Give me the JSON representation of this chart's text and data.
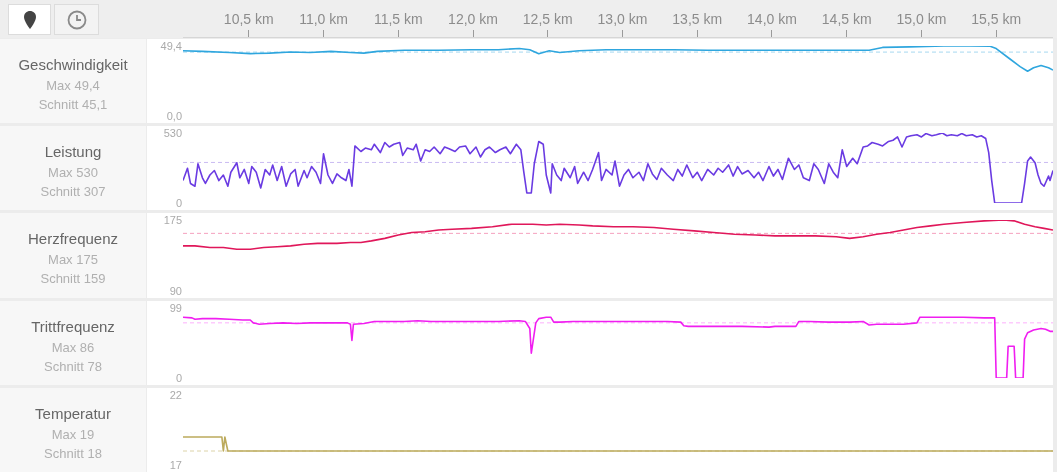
{
  "chart_data": [
    {
      "type": "line",
      "ylabel": "Geschwindigkeit",
      "annotations": [
        "Max 49,4",
        "Schnitt 45,1"
      ],
      "x": [
        10.06,
        10.19,
        10.37,
        10.51,
        10.64,
        10.78,
        10.91,
        11.05,
        11.18,
        11.27,
        11.36,
        11.54,
        11.77,
        11.99,
        12.17,
        12.31,
        12.38,
        12.44,
        12.51,
        12.58,
        12.71,
        12.89,
        13.12,
        13.34,
        13.57,
        13.8,
        14.02,
        14.25,
        14.47,
        14.65,
        14.74,
        14.92,
        15.15,
        15.33,
        15.46,
        15.5,
        15.59,
        15.66,
        15.71,
        15.75,
        15.8,
        15.85,
        15.88
      ],
      "series": [
        {
          "color": "#2fa6de",
          "values": [
            46.0,
            45.6,
            44.8,
            44.0,
            44.4,
            45.2,
            44.8,
            45.6,
            44.8,
            44.4,
            45.6,
            46.4,
            46.4,
            46.8,
            46.8,
            47.6,
            46.8,
            44.0,
            46.0,
            44.8,
            46.0,
            46.8,
            46.8,
            46.8,
            46.4,
            46.4,
            46.4,
            46.4,
            46.4,
            46.4,
            48.4,
            48.8,
            49.4,
            49.4,
            49.2,
            47.6,
            40.4,
            34.8,
            31.6,
            34.0,
            35.6,
            34.0,
            32.4
          ]
        }
      ],
      "xlim": [
        10.06,
        15.88
      ],
      "xticks": [
        {
          "value": 10.5,
          "label": "10,5 km"
        },
        {
          "value": 11,
          "label": "11,0 km"
        },
        {
          "value": 11.5,
          "label": "11,5 km"
        },
        {
          "value": 12,
          "label": "12,0 km"
        },
        {
          "value": 12.5,
          "label": "12,5 km"
        },
        {
          "value": 13,
          "label": "13,0 km"
        },
        {
          "value": 13.5,
          "label": "13,5 km"
        },
        {
          "value": 14,
          "label": "14,0 km"
        },
        {
          "value": 14.5,
          "label": "14,5 km"
        },
        {
          "value": 15,
          "label": "15,0 km"
        },
        {
          "value": 15.5,
          "label": "15,5 km"
        }
      ],
      "ylim": [
        0,
        49.4
      ],
      "yticks": [
        {
          "value": 0,
          "label": "0,0"
        },
        {
          "value": 49.4,
          "label": "49,4"
        }
      ],
      "ref_lines": [
        {
          "axis": "y",
          "value": 45.1,
          "color": "#a6d8f0",
          "line_style": "dashed"
        }
      ]
    },
    {
      "type": "line",
      "ylabel": "Leistung",
      "annotations": [
        "Max 530",
        "Schnitt 307"
      ],
      "x": [
        10.06,
        10.09,
        10.11,
        10.14,
        10.16,
        10.19,
        10.21,
        10.24,
        10.27,
        10.3,
        10.33,
        10.36,
        10.38,
        10.42,
        10.44,
        10.47,
        10.5,
        10.52,
        10.55,
        10.58,
        10.61,
        10.64,
        10.66,
        10.69,
        10.72,
        10.75,
        10.78,
        10.81,
        10.83,
        10.87,
        10.89,
        10.92,
        10.95,
        10.98,
        11.0,
        11.03,
        11.06,
        11.09,
        11.12,
        11.15,
        11.17,
        11.19,
        11.21,
        11.25,
        11.28,
        11.32,
        11.34,
        11.38,
        11.41,
        11.44,
        11.47,
        11.51,
        11.53,
        11.56,
        11.6,
        11.62,
        11.65,
        11.68,
        11.71,
        11.74,
        11.78,
        11.81,
        11.84,
        11.88,
        11.91,
        11.95,
        11.98,
        12.02,
        12.05,
        12.08,
        12.11,
        12.15,
        12.18,
        12.22,
        12.25,
        12.29,
        12.32,
        12.34,
        12.36,
        12.39,
        12.41,
        12.44,
        12.47,
        12.49,
        12.52,
        12.53,
        12.56,
        12.59,
        12.61,
        12.65,
        12.68,
        12.7,
        12.74,
        12.77,
        12.8,
        12.84,
        12.86,
        12.89,
        12.93,
        12.95,
        12.98,
        13.01,
        13.04,
        13.07,
        13.11,
        13.14,
        13.17,
        13.2,
        13.23,
        13.26,
        13.3,
        13.34,
        13.37,
        13.4,
        13.43,
        13.47,
        13.5,
        13.53,
        13.57,
        13.61,
        13.64,
        13.67,
        13.71,
        13.74,
        13.77,
        13.8,
        13.84,
        13.88,
        13.91,
        13.94,
        13.98,
        14.01,
        14.04,
        14.07,
        14.11,
        14.15,
        14.18,
        14.21,
        14.25,
        14.28,
        14.31,
        14.35,
        14.38,
        14.41,
        14.44,
        14.47,
        14.5,
        14.54,
        14.57,
        14.61,
        14.64,
        14.67,
        14.71,
        14.74,
        14.78,
        14.81,
        14.84,
        14.87,
        14.9,
        14.93,
        14.97,
        15.0,
        15.03,
        15.07,
        15.1,
        15.14,
        15.17,
        15.2,
        15.24,
        15.27,
        15.3,
        15.34,
        15.37,
        15.4,
        15.43,
        15.45,
        15.47,
        15.49,
        15.6,
        15.67,
        15.69,
        15.71,
        15.73,
        15.76,
        15.78,
        15.8,
        15.82,
        15.85,
        15.86,
        15.88
      ],
      "series": [
        {
          "color": "#6a3be2",
          "values": [
            170,
            263,
            148,
            127,
            297,
            191,
            148,
            212,
            246,
            170,
            212,
            127,
            233,
            305,
            191,
            254,
            148,
            276,
            233,
            114,
            254,
            212,
            288,
            170,
            276,
            127,
            220,
            254,
            127,
            246,
            191,
            276,
            233,
            148,
            373,
            212,
            148,
            220,
            191,
            170,
            254,
            127,
            432,
            390,
            416,
            403,
            445,
            382,
            458,
            424,
            445,
            458,
            360,
            416,
            403,
            445,
            318,
            403,
            390,
            424,
            373,
            424,
            411,
            390,
            424,
            432,
            373,
            424,
            348,
            403,
            424,
            382,
            403,
            424,
            373,
            445,
            403,
            233,
            76,
            76,
            297,
            466,
            445,
            212,
            76,
            297,
            212,
            170,
            263,
            191,
            276,
            148,
            233,
            170,
            254,
            382,
            170,
            254,
            212,
            318,
            127,
            212,
            254,
            191,
            233,
            170,
            297,
            220,
            178,
            263,
            212,
            170,
            254,
            204,
            288,
            191,
            233,
            170,
            254,
            212,
            263,
            233,
            288,
            204,
            276,
            220,
            246,
            191,
            233,
            170,
            276,
            204,
            254,
            178,
            339,
            254,
            288,
            191,
            170,
            297,
            254,
            148,
            297,
            233,
            191,
            403,
            276,
            339,
            297,
            424,
            432,
            458,
            445,
            432,
            466,
            475,
            500,
            424,
            500,
            509,
            517,
            500,
            526,
            509,
            517,
            530,
            509,
            517,
            509,
            526,
            509,
            517,
            500,
            509,
            488,
            382,
            170,
            0,
            0,
            0,
            148,
            318,
            348,
            305,
            212,
            148,
            127,
            204,
            170,
            246
          ]
        }
      ],
      "xlim": [
        10.06,
        15.88
      ],
      "ylim": [
        0,
        530
      ],
      "yticks": [
        0,
        530
      ],
      "tick_labels": "y",
      "ref_lines": [
        {
          "axis": "y",
          "value": 307,
          "color": "#c9baf2",
          "line_style": "dashed"
        }
      ]
    },
    {
      "type": "line",
      "ylabel": "Herzfrequenz",
      "annotations": [
        "Max 175",
        "Schnitt 159"
      ],
      "x": [
        10.06,
        10.14,
        10.24,
        10.33,
        10.42,
        10.51,
        10.6,
        10.69,
        10.78,
        10.87,
        10.96,
        11.09,
        11.18,
        11.25,
        11.32,
        11.41,
        11.5,
        11.59,
        11.68,
        11.77,
        11.86,
        11.99,
        12.13,
        12.26,
        12.4,
        12.49,
        12.58,
        12.71,
        12.8,
        12.94,
        13.07,
        13.21,
        13.34,
        13.48,
        13.61,
        13.75,
        13.89,
        14.02,
        14.16,
        14.29,
        14.43,
        14.52,
        14.61,
        14.7,
        14.79,
        14.88,
        14.97,
        15.06,
        15.15,
        15.28,
        15.42,
        15.55,
        15.62,
        15.69,
        15.76,
        15.82,
        15.88
      ],
      "series": [
        {
          "color": "#e0175a",
          "values": [
            144,
            144,
            142,
            142,
            140,
            140,
            142,
            143,
            144,
            146,
            147,
            147,
            148,
            148,
            150,
            153,
            157,
            160,
            161,
            163,
            164,
            165,
            167,
            170,
            170,
            169,
            170,
            169,
            168,
            167,
            167,
            166,
            164,
            162,
            160,
            158,
            157,
            156,
            156,
            156,
            155,
            153,
            155,
            158,
            160,
            163,
            166,
            168,
            170,
            172,
            174,
            175,
            174,
            170,
            167,
            165,
            163
          ]
        }
      ],
      "xlim": [
        10.06,
        15.88
      ],
      "ylim": [
        90,
        175
      ],
      "yticks": [
        90,
        175
      ],
      "tick_labels": "y",
      "ref_lines": [
        {
          "axis": "y",
          "value": 159,
          "color": "#f5a0be",
          "line_style": "dashed"
        }
      ]
    },
    {
      "type": "line",
      "ylabel": "Trittfrequenz",
      "annotations": [
        "Max 86",
        "Schnitt 78"
      ],
      "x": [
        10.06,
        10.12,
        10.14,
        10.19,
        10.28,
        10.37,
        10.46,
        10.51,
        10.53,
        10.57,
        10.64,
        10.73,
        10.82,
        10.91,
        11.0,
        11.09,
        11.16,
        11.18,
        11.19,
        11.2,
        11.27,
        11.34,
        11.41,
        11.54,
        11.63,
        11.72,
        11.81,
        11.99,
        12.17,
        12.31,
        12.35,
        12.38,
        12.39,
        12.42,
        12.44,
        12.49,
        12.52,
        12.54,
        12.58,
        12.67,
        12.76,
        12.89,
        13.03,
        13.16,
        13.3,
        13.39,
        13.41,
        13.44,
        13.57,
        13.8,
        13.98,
        14.02,
        14.16,
        14.18,
        14.25,
        14.38,
        14.52,
        14.61,
        14.65,
        14.7,
        14.88,
        14.97,
        14.99,
        15.15,
        15.28,
        15.42,
        15.49,
        15.5,
        15.57,
        15.58,
        15.62,
        15.63,
        15.68,
        15.69,
        15.71,
        15.75,
        15.8,
        15.83,
        15.86,
        15.88
      ],
      "series": [
        {
          "color": "#f01ef0",
          "values": [
            86,
            85,
            83,
            84,
            84,
            83,
            82,
            82,
            78,
            76,
            77,
            78,
            77,
            78,
            78,
            78,
            78,
            76,
            53,
            76,
            77,
            80,
            80,
            80,
            81,
            80,
            80,
            80,
            80,
            81,
            80,
            70,
            35,
            78,
            84,
            86,
            86,
            79,
            79,
            80,
            80,
            80,
            80,
            80,
            80,
            79,
            74,
            73,
            73,
            73,
            72,
            73,
            73,
            80,
            80,
            79,
            79,
            80,
            75,
            76,
            76,
            78,
            86,
            86,
            86,
            85,
            85,
            0,
            0,
            45,
            45,
            0,
            0,
            55,
            64,
            68,
            70,
            69,
            66,
            66
          ]
        }
      ],
      "xlim": [
        10.06,
        15.88
      ],
      "ylim": [
        0,
        99
      ],
      "yticks": [
        0,
        99
      ],
      "tick_labels": "y",
      "ref_lines": [
        {
          "axis": "y",
          "value": 78,
          "color": "#fcb0fc",
          "line_style": "dashed"
        }
      ]
    },
    {
      "type": "line",
      "ylabel": "Temperatur",
      "annotations": [
        "Max 19",
        "Schnitt 18"
      ],
      "x": [
        10.06,
        10.32,
        10.33,
        10.34,
        10.36,
        15.88
      ],
      "series": [
        {
          "color": "#bcaa5c",
          "values": [
            19,
            19,
            18,
            19,
            18,
            18
          ]
        }
      ],
      "xlim": [
        10.06,
        15.88
      ],
      "ylim": [
        17,
        22
      ],
      "yticks": [
        17,
        22
      ],
      "tick_labels": "y",
      "ref_lines": [
        {
          "axis": "y",
          "value": 18,
          "color": "#dcd3a8",
          "line_style": "dashed"
        }
      ]
    }
  ]
}
